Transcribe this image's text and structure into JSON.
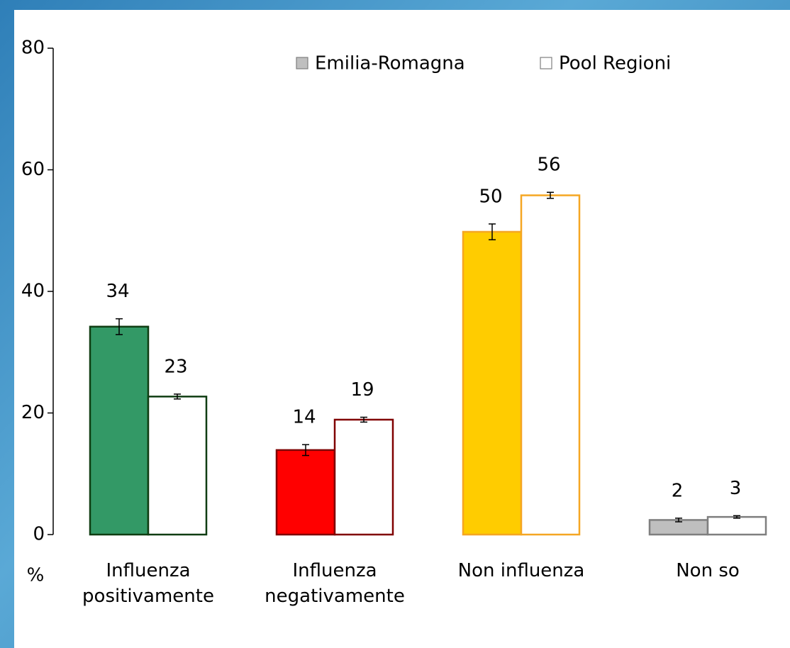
{
  "chart_data": {
    "type": "bar",
    "y_label": "%",
    "categories": [
      "Influenza positivamente",
      "Influenza negativamente",
      "Non influenza",
      "Non so"
    ],
    "category_colors": [
      "#0f3d12",
      "#800000",
      "#f5a623",
      "#7f7f7f"
    ],
    "series": [
      {
        "name": "Emilia-Romagna",
        "color": "#bfbfbf",
        "colors": [
          "#339966",
          "#ff0000",
          "#ffcc00",
          "#bfbfbf"
        ],
        "values": [
          34.2,
          13.9,
          49.8,
          2.4
        ],
        "value_labels": [
          "34",
          "14",
          "50",
          "2"
        ],
        "errors": [
          1.3,
          0.9,
          1.3,
          0.3
        ]
      },
      {
        "name": "Pool Regioni",
        "color": "#ffffff",
        "colors": [
          "#ffffff",
          "#ffffff",
          "#ffffff",
          "#ffffff"
        ],
        "values": [
          22.7,
          18.9,
          55.8,
          2.9
        ],
        "value_labels": [
          "23",
          "19",
          "56",
          "3"
        ],
        "errors": [
          0.4,
          0.4,
          0.5,
          0.2
        ]
      }
    ],
    "ylim": [
      0,
      80
    ],
    "yticks": [
      0,
      20,
      40,
      60,
      80
    ],
    "grid": false,
    "legend": "top"
  }
}
